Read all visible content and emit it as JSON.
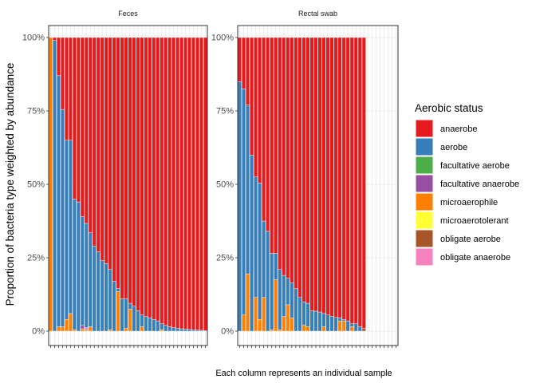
{
  "chart_data": {
    "type": "bar",
    "stacked": true,
    "ylabel": "Proportion of bacteria type weighted by abundance",
    "xlabel": "Each column represents an individual sample",
    "ylim": [
      0,
      1
    ],
    "yticks": [
      0,
      0.25,
      0.5,
      0.75,
      1.0
    ],
    "ytick_labels": [
      "0%",
      "25%",
      "50%",
      "75%",
      "100%"
    ],
    "grid": true,
    "legend": {
      "title": "Aerobic status",
      "placement": "right",
      "entries": [
        {
          "name": "anaerobe",
          "color": "#E41A1C"
        },
        {
          "name": "aerobe",
          "color": "#377EB8"
        },
        {
          "name": "facultative aerobe",
          "color": "#4DAF4A"
        },
        {
          "name": "facultative anaerobe",
          "color": "#984EA3"
        },
        {
          "name": "microaerophile",
          "color": "#FF7F00"
        },
        {
          "name": "microaerotolerant",
          "color": "#FFFF33"
        },
        {
          "name": "obligate aerobe",
          "color": "#A65628"
        },
        {
          "name": "obligate anaerobe",
          "color": "#F781BF"
        }
      ]
    },
    "panels": [
      {
        "title": "Feces",
        "samples": [
          {
            "microaerophile": 1.0,
            "aerobe": 0.0
          },
          {
            "microaerophile": 0.0,
            "aerobe": 0.99
          },
          {
            "microaerophile": 0.015,
            "aerobe": 0.855
          },
          {
            "microaerophile": 0.015,
            "aerobe": 0.74
          },
          {
            "microaerophile": 0.04,
            "aerobe": 0.61
          },
          {
            "microaerophile": 0.06,
            "aerobe": 0.59
          },
          {
            "microaerophile": 0.005,
            "aerobe": 0.445
          },
          {
            "microaerophile": 0.0,
            "aerobe": 0.44
          },
          {
            "microaerophile": 0.008,
            "aerobe": 0.37,
            "facultative anaerobe": 0.012
          },
          {
            "microaerophile": 0.005,
            "aerobe": 0.355,
            "obligate anaerobe": 0.007
          },
          {
            "microaerophile": 0.015,
            "aerobe": 0.32
          },
          {
            "microaerophile": 0.0,
            "aerobe": 0.29
          },
          {
            "microaerophile": 0.0,
            "aerobe": 0.27
          },
          {
            "microaerophile": 0.0,
            "aerobe": 0.24
          },
          {
            "microaerophile": 0.0,
            "aerobe": 0.23
          },
          {
            "microaerophile": 0.005,
            "aerobe": 0.205
          },
          {
            "microaerophile": 0.0,
            "aerobe": 0.17
          },
          {
            "microaerophile": 0.135,
            "aerobe": 0.01
          },
          {
            "microaerophile": 0.0,
            "aerobe": 0.11
          },
          {
            "microaerophile": 0.01,
            "aerobe": 0.1
          },
          {
            "microaerophile": 0.075,
            "aerobe": 0.02
          },
          {
            "microaerophile": 0.0,
            "aerobe": 0.085
          },
          {
            "microaerophile": 0.0,
            "aerobe": 0.07
          },
          {
            "microaerophile": 0.015,
            "aerobe": 0.04
          },
          {
            "microaerophile": 0.0,
            "aerobe": 0.05
          },
          {
            "microaerophile": 0.0,
            "aerobe": 0.045
          },
          {
            "microaerophile": 0.0,
            "aerobe": 0.04
          },
          {
            "microaerophile": 0.0,
            "aerobe": 0.035
          },
          {
            "microaerophile": 0.005,
            "aerobe": 0.02
          },
          {
            "microaerophile": 0.0,
            "aerobe": 0.02
          },
          {
            "microaerophile": 0.0,
            "aerobe": 0.015
          },
          {
            "microaerophile": 0.0,
            "aerobe": 0.012
          },
          {
            "microaerophile": 0.0,
            "aerobe": 0.01
          },
          {
            "microaerophile": 0.0,
            "aerobe": 0.008
          },
          {
            "microaerophile": 0.0,
            "aerobe": 0.007
          },
          {
            "microaerophile": 0.0,
            "aerobe": 0.006
          },
          {
            "microaerophile": 0.0,
            "aerobe": 0.005
          },
          {
            "microaerophile": 0.0,
            "aerobe": 0.004
          },
          {
            "microaerophile": 0.0,
            "aerobe": 0.003
          },
          {
            "microaerophile": 0.0,
            "aerobe": 0.002
          }
        ]
      },
      {
        "title": "Rectal swab",
        "samples": [
          {
            "microaerophile": 0.0,
            "aerobe": 0.85
          },
          {
            "microaerophile": 0.055,
            "aerobe": 0.77
          },
          {
            "microaerophile": 0.195,
            "aerobe": 0.575
          },
          {
            "microaerophile": 0.0,
            "aerobe": 0.6
          },
          {
            "microaerophile": 0.115,
            "aerobe": 0.41
          },
          {
            "microaerophile": 0.04,
            "aerobe": 0.465
          },
          {
            "microaerophile": 0.115,
            "aerobe": 0.26
          },
          {
            "microaerophile": 0.0,
            "aerobe": 0.34
          },
          {
            "microaerophile": 0.005,
            "aerobe": 0.26
          },
          {
            "microaerophile": 0.175,
            "aerobe": 0.09
          },
          {
            "microaerophile": 0.005,
            "aerobe": 0.205
          },
          {
            "microaerophile": 0.05,
            "aerobe": 0.14
          },
          {
            "microaerophile": 0.09,
            "aerobe": 0.09
          },
          {
            "microaerophile": 0.045,
            "aerobe": 0.12
          },
          {
            "microaerophile": 0.0,
            "aerobe": 0.145
          },
          {
            "microaerophile": 0.0,
            "aerobe": 0.115
          },
          {
            "microaerophile": 0.02,
            "aerobe": 0.08
          },
          {
            "microaerophile": 0.015,
            "aerobe": 0.08
          },
          {
            "microaerophile": 0.0,
            "aerobe": 0.07
          },
          {
            "microaerophile": 0.0,
            "aerobe": 0.068
          },
          {
            "microaerophile": 0.0,
            "aerobe": 0.065
          },
          {
            "microaerophile": 0.015,
            "aerobe": 0.045
          },
          {
            "microaerophile": 0.0,
            "aerobe": 0.055
          },
          {
            "microaerophile": 0.0,
            "aerobe": 0.05
          },
          {
            "microaerophile": 0.0,
            "aerobe": 0.047
          },
          {
            "microaerophile": 0.035,
            "aerobe": 0.01
          },
          {
            "microaerophile": 0.035,
            "aerobe": 0.005
          },
          {
            "microaerophile": 0.0,
            "aerobe": 0.035
          },
          {
            "microaerophile": 0.015,
            "aerobe": 0.01
          },
          {
            "microaerophile": 0.0,
            "aerobe": 0.025
          },
          {
            "microaerophile": 0.0,
            "aerobe": 0.015
          },
          {
            "obligate aerobe": 0.01
          }
        ]
      }
    ]
  }
}
